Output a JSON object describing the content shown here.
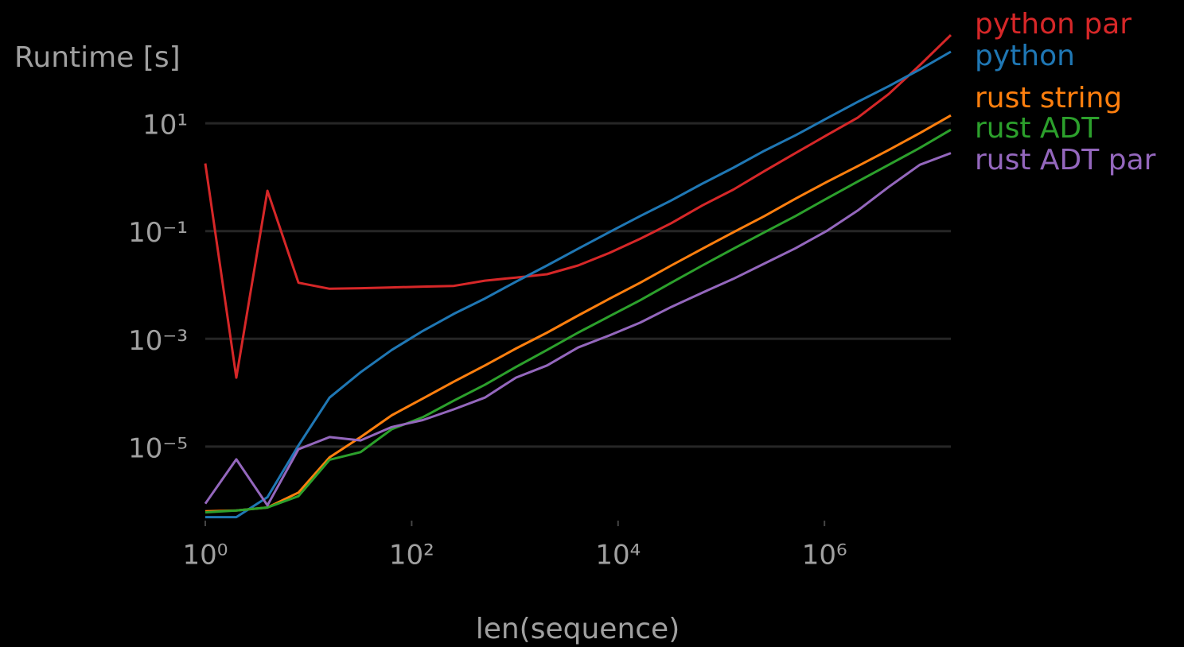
{
  "chart_data": {
    "type": "line",
    "x_label": "len(sequence)",
    "y_label": "Runtime [s]",
    "x": [
      1,
      2,
      4,
      8,
      16,
      32,
      64,
      128,
      256,
      512,
      1024,
      2048,
      4096,
      8192,
      16384,
      32768,
      65536,
      131072,
      262144,
      524288,
      1048576,
      2097152,
      4194304,
      8388608,
      16777216
    ],
    "xscale": "log",
    "yscale": "log",
    "xlim": [
      1,
      16777216
    ],
    "ylim": [
      5e-07,
      500
    ],
    "xticks": [
      {
        "value": 1,
        "label": "10⁰"
      },
      {
        "value": 100,
        "label": "10²"
      },
      {
        "value": 10000,
        "label": "10⁴"
      },
      {
        "value": 1000000,
        "label": "10⁶"
      }
    ],
    "yticks": [
      {
        "value": 1e-05,
        "label": "10⁻⁵"
      },
      {
        "value": 0.001,
        "label": "10⁻³"
      },
      {
        "value": 0.1,
        "label": "10⁻¹"
      },
      {
        "value": 10,
        "label": "10¹"
      }
    ],
    "grid": true,
    "series": [
      {
        "name": "python par",
        "color": "#d62728",
        "values": [
          1.8,
          0.00019,
          0.56,
          0.011,
          0.0085,
          0.0087,
          0.009,
          0.0093,
          0.0096,
          0.012,
          0.0137,
          0.0158,
          0.023,
          0.039,
          0.072,
          0.14,
          0.3,
          0.59,
          1.3,
          2.8,
          6.0,
          12.7,
          35,
          120,
          435
        ]
      },
      {
        "name": "python",
        "color": "#1f77b4",
        "values": [
          4.9e-07,
          4.9e-07,
          1.15e-06,
          1.05e-05,
          8.1e-05,
          0.00024,
          0.00062,
          0.0014,
          0.0029,
          0.0056,
          0.0115,
          0.023,
          0.047,
          0.095,
          0.19,
          0.37,
          0.76,
          1.5,
          3.1,
          6.0,
          12.3,
          25,
          49,
          100,
          214
        ]
      },
      {
        "name": "rust string",
        "color": "#ff7f0e",
        "values": [
          6.3e-07,
          6.5e-07,
          7.4e-07,
          1.4e-06,
          6.3e-06,
          1.5e-05,
          3.8e-05,
          7.8e-05,
          0.00016,
          0.00032,
          0.00066,
          0.0013,
          0.0027,
          0.0055,
          0.011,
          0.023,
          0.047,
          0.095,
          0.19,
          0.4,
          0.81,
          1.6,
          3.2,
          6.6,
          14
        ]
      },
      {
        "name": "rust ADT",
        "color": "#2ca02c",
        "values": [
          6e-07,
          6.5e-07,
          7.4e-07,
          1.2e-06,
          5.7e-06,
          7.9e-06,
          2.1e-05,
          3.5e-05,
          7.1e-05,
          0.00014,
          0.0003,
          0.00062,
          0.0013,
          0.0026,
          0.0052,
          0.011,
          0.023,
          0.047,
          0.095,
          0.19,
          0.4,
          0.83,
          1.7,
          3.5,
          7.6
        ]
      },
      {
        "name": "rust ADT par",
        "color": "#9467bd",
        "values": [
          8.7e-07,
          5.8e-06,
          8.1e-07,
          8.9e-06,
          1.5e-05,
          1.3e-05,
          2.3e-05,
          3.1e-05,
          4.9e-05,
          8.1e-05,
          0.00019,
          0.00032,
          0.00069,
          0.00115,
          0.002,
          0.0039,
          0.0072,
          0.013,
          0.025,
          0.048,
          0.1,
          0.24,
          0.66,
          1.7,
          2.8
        ]
      }
    ]
  }
}
